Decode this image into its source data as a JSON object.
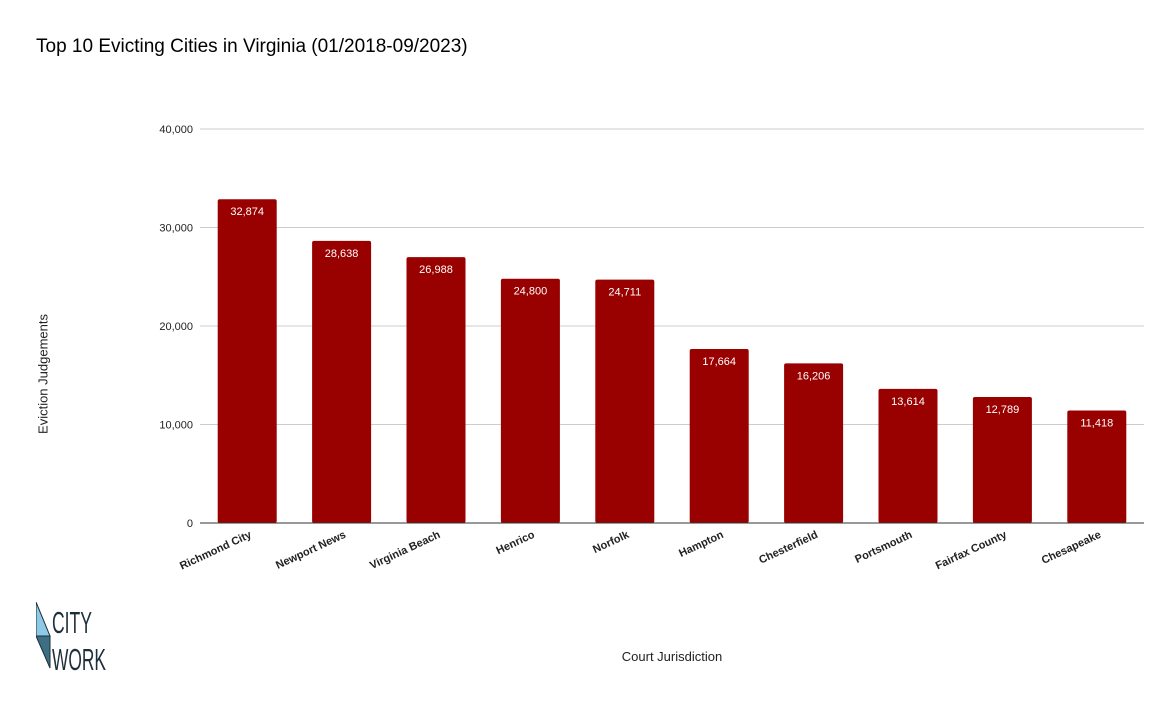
{
  "chart_data": {
    "type": "bar",
    "title": "Top 10 Evicting Cities in Virginia (01/2018-09/2023)",
    "xlabel": "Court Jurisdiction",
    "ylabel": "Eviction Judgements",
    "categories": [
      "Richmond City",
      "Newport News",
      "Virginia Beach",
      "Henrico",
      "Norfolk",
      "Hampton",
      "Chesterfield",
      "Portsmouth",
      "Fairfax County",
      "Chesapeake"
    ],
    "values": [
      32874,
      28638,
      26988,
      24800,
      24711,
      17664,
      16206,
      13614,
      12789,
      11418
    ],
    "data_labels": [
      "32,874",
      "28,638",
      "26,988",
      "24,800",
      "24,711",
      "17,664",
      "16,206",
      "13,614",
      "12,789",
      "11,418"
    ],
    "ylim": [
      0,
      40000
    ],
    "yticks": [
      0,
      10000,
      20000,
      30000,
      40000
    ],
    "ytick_labels": [
      "0",
      "10,000",
      "20,000",
      "30,000",
      "40,000"
    ],
    "grid": true,
    "legend": "none",
    "bar_color": "#990000"
  },
  "logo": {
    "line1": "CITY",
    "line2": "WORK",
    "colors": [
      "#8ecae6",
      "#3d6f84",
      "#1f2f3a"
    ]
  }
}
